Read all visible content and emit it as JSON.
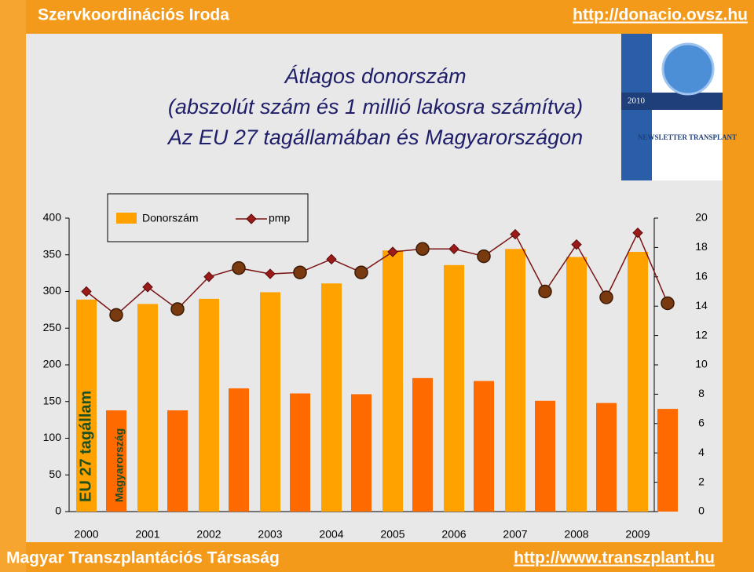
{
  "header": {
    "left": "Szervkoordinációs Iroda",
    "right": "http://donacio.ovsz.hu"
  },
  "footer": {
    "left": "Magyar Transzplantációs Társaság",
    "right": "http://www.transzplant.hu"
  },
  "newsletter": {
    "year": "2010",
    "title": "NEWSLETTER TRANSPLANT"
  },
  "chart_data": {
    "type": "bar_line",
    "title": [
      "Átlagos donorszám",
      "(abszolút szám és 1 millió lakosra számítva)",
      "Az EU 27 tagállamában és Magyarországon"
    ],
    "categories": [
      "2000",
      "2001",
      "2002",
      "2003",
      "2004",
      "2005",
      "2006",
      "2007",
      "2008",
      "2009"
    ],
    "groups": [
      "EU 27 tagállam",
      "Magyarország"
    ],
    "series": [
      {
        "name": "Donorszám",
        "color": "#ffa200",
        "dark_color": "#ff6a00",
        "eu_values": [
          289,
          283,
          290,
          299,
          311,
          356,
          336,
          358,
          347,
          354
        ],
        "hu_values": [
          138,
          138,
          168,
          161,
          160,
          182,
          178,
          151,
          148,
          140
        ]
      },
      {
        "name": "pmp",
        "axis": "y2",
        "color": "#7a1414",
        "eu_values": [
          15.0,
          15.3,
          16.0,
          16.2,
          17.2,
          17.7,
          17.9,
          18.9,
          18.2,
          19.0
        ],
        "hu_values": [
          13.4,
          13.8,
          16.6,
          16.3,
          16.3,
          17.9,
          17.4,
          15.0,
          14.6,
          14.2
        ]
      }
    ],
    "ylim": [
      0,
      400
    ],
    "yticks": [
      0,
      50,
      100,
      150,
      200,
      250,
      300,
      350,
      400
    ],
    "y2lim": [
      0,
      20
    ],
    "y2ticks": [
      0,
      2,
      4,
      6,
      8,
      10,
      12,
      14,
      16,
      18,
      20
    ]
  }
}
